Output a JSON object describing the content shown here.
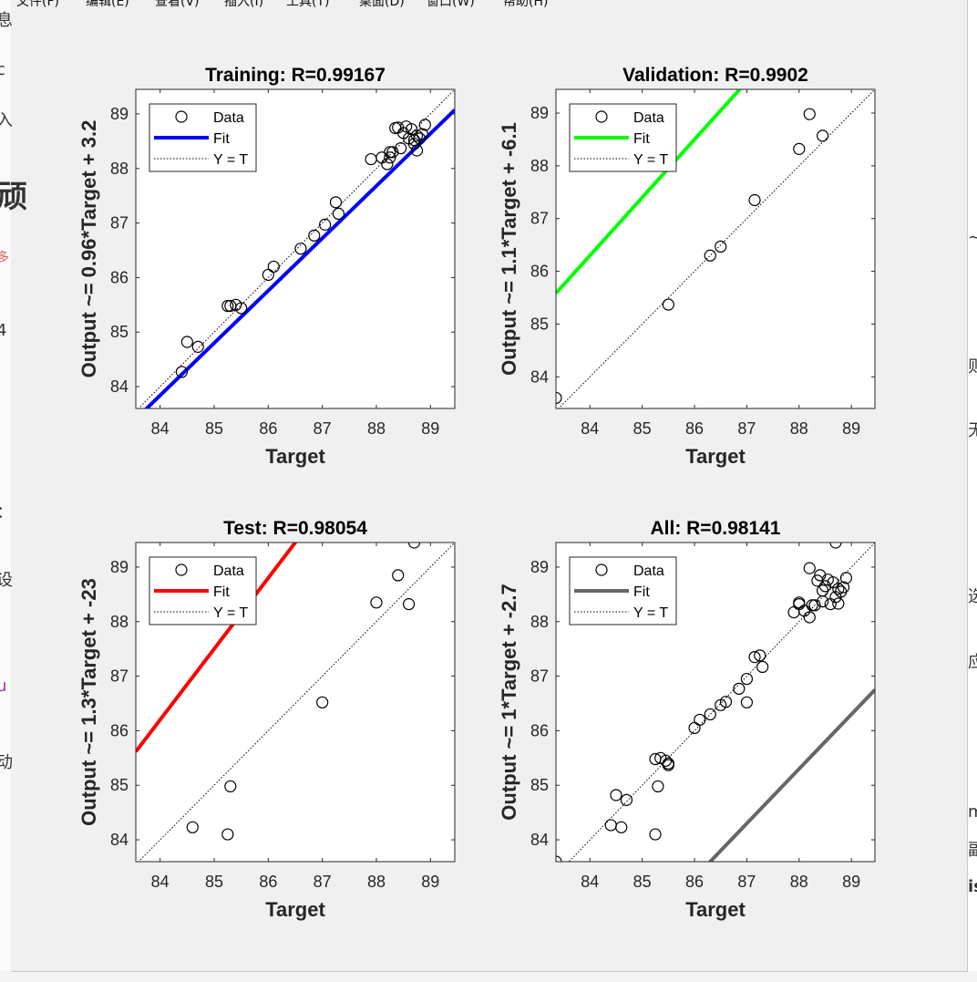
{
  "menu": [
    "文件(F)",
    "编辑(E)",
    "查看(V)",
    "插入(I)",
    "工具(T)",
    "桌面(D)",
    "窗口(W)",
    "帮助(H)"
  ],
  "background_left": [
    "息",
    "c",
    "入",
    "顽",
    "多",
    "4",
    "：",
    "设",
    "u",
    "动"
  ],
  "background_right": [
    "~",
    "则",
    "无",
    "选",
    "应",
    "m",
    "副",
    "is"
  ],
  "legend": {
    "data": "Data",
    "fit": "Fit",
    "yt": "Y = T"
  },
  "colors": {
    "training": "#0000ff",
    "validation": "#00ff00",
    "test": "#ff0000",
    "all": "#666666"
  },
  "chart_data": [
    {
      "type": "scatter",
      "title": "Training: R=0.99167",
      "xlabel": "Target",
      "ylabel": "Output ~= 0.96*Target + 3.2",
      "xlim": [
        83.55,
        89.45
      ],
      "ylim": [
        83.6,
        89.45
      ],
      "xticks": [
        84,
        85,
        86,
        87,
        88,
        89
      ],
      "yticks": [
        84,
        85,
        86,
        87,
        88,
        89
      ],
      "fit": {
        "slope": 0.96,
        "intercept": 3.2,
        "color": "#0000ff"
      },
      "legend_position": "top-left",
      "series": [
        {
          "name": "Data",
          "points": [
            [
              84.4,
              84.27
            ],
            [
              84.5,
              84.82
            ],
            [
              84.7,
              84.73
            ],
            [
              85.25,
              85.48
            ],
            [
              85.3,
              85.48
            ],
            [
              85.4,
              85.5
            ],
            [
              85.5,
              85.44
            ],
            [
              86.0,
              86.05
            ],
            [
              86.1,
              86.2
            ],
            [
              86.6,
              86.53
            ],
            [
              86.85,
              86.77
            ],
            [
              87.05,
              86.97
            ],
            [
              87.25,
              87.38
            ],
            [
              87.3,
              87.17
            ],
            [
              87.9,
              88.17
            ],
            [
              88.1,
              88.2
            ],
            [
              88.2,
              88.08
            ],
            [
              88.25,
              88.3
            ],
            [
              88.25,
              88.2
            ],
            [
              88.3,
              88.3
            ],
            [
              88.35,
              88.74
            ],
            [
              88.4,
              88.75
            ],
            [
              88.45,
              88.37
            ],
            [
              88.5,
              88.65
            ],
            [
              88.55,
              88.77
            ],
            [
              88.6,
              88.55
            ],
            [
              88.65,
              88.72
            ],
            [
              88.7,
              88.45
            ],
            [
              88.7,
              88.52
            ],
            [
              88.75,
              88.33
            ],
            [
              88.75,
              88.6
            ],
            [
              88.8,
              88.55
            ],
            [
              88.85,
              88.63
            ],
            [
              88.9,
              88.8
            ]
          ]
        }
      ]
    },
    {
      "type": "scatter",
      "title": "Validation: R=0.9902",
      "xlabel": "Target",
      "ylabel": "Output ~= 1.1*Target + -6.1",
      "xlim": [
        83.35,
        89.45
      ],
      "ylim": [
        83.4,
        89.45
      ],
      "xticks": [
        84,
        85,
        86,
        87,
        88,
        89
      ],
      "yticks": [
        84,
        85,
        86,
        87,
        88,
        89
      ],
      "fit": {
        "slope": 1.1,
        "intercept": -6.1,
        "color": "#00ff00"
      },
      "legend_position": "top-left",
      "series": [
        {
          "name": "Data",
          "points": [
            [
              83.35,
              83.6
            ],
            [
              85.5,
              85.37
            ],
            [
              86.3,
              86.3
            ],
            [
              86.5,
              86.47
            ],
            [
              87.15,
              87.35
            ],
            [
              88.0,
              88.32
            ],
            [
              88.2,
              88.98
            ],
            [
              88.45,
              88.57
            ]
          ]
        }
      ]
    },
    {
      "type": "scatter",
      "title": "Test: R=0.98054",
      "xlabel": "Target",
      "ylabel": "Output ~= 1.3*Target + -23",
      "xlim": [
        83.55,
        89.45
      ],
      "ylim": [
        83.6,
        89.45
      ],
      "xticks": [
        84,
        85,
        86,
        87,
        88,
        89
      ],
      "yticks": [
        84,
        85,
        86,
        87,
        88,
        89
      ],
      "fit": {
        "slope": 1.3,
        "intercept": -23,
        "color": "#ff0000"
      },
      "legend_position": "top-left",
      "series": [
        {
          "name": "Data",
          "points": [
            [
              84.6,
              84.23
            ],
            [
              85.25,
              84.1
            ],
            [
              85.3,
              84.98
            ],
            [
              87.0,
              86.52
            ],
            [
              88.0,
              88.35
            ],
            [
              88.4,
              88.85
            ],
            [
              88.6,
              88.32
            ],
            [
              88.7,
              89.45
            ]
          ]
        }
      ]
    },
    {
      "type": "scatter",
      "title": "All: R=0.98141",
      "xlabel": "Target",
      "ylabel": "Output ~= 1*Target + -2.7",
      "xlim": [
        83.35,
        89.45
      ],
      "ylim": [
        83.6,
        89.45
      ],
      "xticks": [
        84,
        85,
        86,
        87,
        88,
        89
      ],
      "yticks": [
        84,
        85,
        86,
        87,
        88,
        89
      ],
      "fit": {
        "slope": 1.0,
        "intercept": -2.7,
        "color": "#666666"
      },
      "legend_position": "top-left",
      "series": [
        {
          "name": "Data",
          "points": [
            [
              83.35,
              83.6
            ],
            [
              84.4,
              84.27
            ],
            [
              84.5,
              84.82
            ],
            [
              84.6,
              84.23
            ],
            [
              84.7,
              84.73
            ],
            [
              85.25,
              84.1
            ],
            [
              85.25,
              85.48
            ],
            [
              85.3,
              84.98
            ],
            [
              85.35,
              85.5
            ],
            [
              85.45,
              85.45
            ],
            [
              85.5,
              85.4
            ],
            [
              85.5,
              85.37
            ],
            [
              86.0,
              86.05
            ],
            [
              86.1,
              86.2
            ],
            [
              86.3,
              86.3
            ],
            [
              86.5,
              86.47
            ],
            [
              86.6,
              86.53
            ],
            [
              86.85,
              86.77
            ],
            [
              87.0,
              86.52
            ],
            [
              87.0,
              86.95
            ],
            [
              87.15,
              87.35
            ],
            [
              87.25,
              87.38
            ],
            [
              87.3,
              87.17
            ],
            [
              87.9,
              88.17
            ],
            [
              88.0,
              88.32
            ],
            [
              88.0,
              88.35
            ],
            [
              88.1,
              88.2
            ],
            [
              88.2,
              88.08
            ],
            [
              88.2,
              88.98
            ],
            [
              88.25,
              88.3
            ],
            [
              88.3,
              88.3
            ],
            [
              88.35,
              88.75
            ],
            [
              88.4,
              88.85
            ],
            [
              88.45,
              88.57
            ],
            [
              88.45,
              88.37
            ],
            [
              88.5,
              88.65
            ],
            [
              88.55,
              88.77
            ],
            [
              88.6,
              88.32
            ],
            [
              88.65,
              88.72
            ],
            [
              88.7,
              88.45
            ],
            [
              88.7,
              89.45
            ],
            [
              88.75,
              88.33
            ],
            [
              88.75,
              88.6
            ],
            [
              88.8,
              88.55
            ],
            [
              88.85,
              88.63
            ],
            [
              88.9,
              88.8
            ]
          ]
        }
      ]
    }
  ]
}
